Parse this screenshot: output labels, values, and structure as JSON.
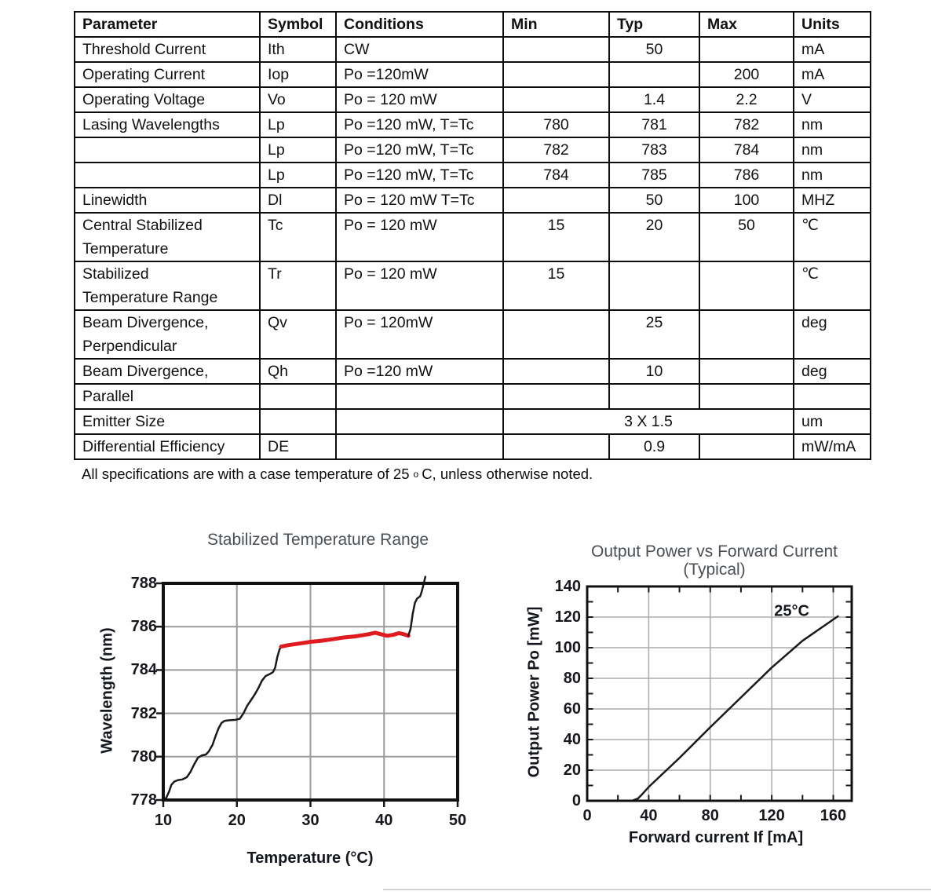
{
  "table": {
    "headers": [
      "Parameter",
      "Symbol",
      "Conditions",
      "Min",
      "Typ",
      "Max",
      "Units"
    ],
    "rows": [
      {
        "cells": [
          "Threshold Current",
          "Ith",
          "CW",
          "",
          "50",
          "",
          "mA"
        ]
      },
      {
        "cells": [
          "Operating Current",
          "Iop",
          "Po =120mW",
          "",
          "",
          "200",
          "mA"
        ]
      },
      {
        "cells": [
          "Operating Voltage",
          "Vo",
          "Po = 120 mW",
          "",
          "1.4",
          "2.2",
          "V"
        ]
      },
      {
        "cells": [
          "Lasing Wavelengths",
          "Lp",
          "Po =120 mW, T=Tc",
          "780",
          "781",
          "782",
          "nm"
        ]
      },
      {
        "cells": [
          "",
          "Lp",
          "Po =120 mW, T=Tc",
          "782",
          "783",
          "784",
          "nm"
        ]
      },
      {
        "cells": [
          "",
          "Lp",
          "Po =120 mW, T=Tc",
          "784",
          "785",
          "786",
          "nm"
        ]
      },
      {
        "cells": [
          "Linewidth",
          "Dl",
          "Po = 120 mW T=Tc",
          "",
          "50",
          "100",
          "MHZ"
        ]
      },
      {
        "cells": [
          "Central Stabilized\nTemperature",
          "Tc",
          "Po = 120 mW",
          "15",
          "20",
          "50",
          "℃"
        ]
      },
      {
        "cells": [
          "Stabilized\nTemperature Range",
          "Tr",
          "Po = 120 mW",
          "15",
          "",
          "",
          "℃"
        ]
      },
      {
        "cells": [
          "Beam Divergence,\nPerpendicular",
          "Qv",
          "Po = 120mW",
          "",
          "25",
          "",
          "deg"
        ]
      },
      {
        "cells": [
          "Beam Divergence,",
          "Qh",
          "Po =120 mW",
          "",
          "10",
          "",
          "deg"
        ]
      },
      {
        "cells": [
          "Parallel",
          "",
          "",
          "",
          "",
          "",
          ""
        ]
      },
      {
        "cells": [
          "Emitter Size",
          "",
          "",
          {
            "text": "3 X 1.5",
            "span": 3
          },
          "um"
        ]
      },
      {
        "cells": [
          "Differential Efficiency",
          "DE",
          "",
          "",
          "0.9",
          "",
          "mW/mA"
        ]
      }
    ]
  },
  "footnote": {
    "pre": "All specifications are with a case temperature of 25",
    "deg": "o",
    "post": "C, unless otherwise noted."
  },
  "chart_data": [
    {
      "type": "line",
      "title": "Stabilized Temperature Range",
      "xlabel": "Temperature (°C)",
      "ylabel": "Wavelength (nm)",
      "xlim": [
        10,
        50
      ],
      "ylim": [
        778,
        788
      ],
      "xticks": [
        10,
        20,
        30,
        40,
        50
      ],
      "yticks": [
        778,
        780,
        782,
        784,
        786,
        788
      ],
      "grid": true,
      "legend": "none",
      "series": [
        {
          "name": "unstabilized-low",
          "color": "#1a1a1a",
          "width": 2.5,
          "points": [
            [
              10,
              778.0
            ],
            [
              10.4,
              778.1
            ],
            [
              10.8,
              778.4
            ],
            [
              11.1,
              778.7
            ],
            [
              11.5,
              778.85
            ],
            [
              12,
              778.92
            ],
            [
              12.6,
              778.95
            ],
            [
              13.2,
              779.05
            ],
            [
              13.7,
              779.3
            ],
            [
              14.2,
              779.65
            ],
            [
              14.7,
              779.95
            ],
            [
              15.2,
              780.05
            ],
            [
              15.8,
              780.1
            ],
            [
              16.2,
              780.25
            ],
            [
              16.7,
              780.55
            ],
            [
              17.1,
              780.95
            ],
            [
              17.5,
              781.3
            ],
            [
              17.9,
              781.55
            ],
            [
              18.3,
              781.65
            ],
            [
              19,
              781.68
            ],
            [
              19.8,
              781.7
            ],
            [
              20.4,
              781.75
            ],
            [
              20.9,
              782.0
            ],
            [
              21.4,
              782.35
            ],
            [
              21.9,
              782.6
            ],
            [
              22.4,
              782.85
            ],
            [
              22.9,
              783.15
            ],
            [
              23.4,
              783.5
            ],
            [
              23.9,
              783.72
            ],
            [
              24.4,
              783.8
            ],
            [
              24.9,
              783.9
            ],
            [
              25.2,
              784.1
            ],
            [
              25.5,
              784.6
            ],
            [
              25.8,
              784.95
            ],
            [
              26,
              785.08
            ]
          ]
        },
        {
          "name": "stabilized-range",
          "color": "#e01b1f",
          "width": 5,
          "points": [
            [
              26,
              785.08
            ],
            [
              27,
              785.15
            ],
            [
              28.5,
              785.22
            ],
            [
              30,
              785.3
            ],
            [
              31.5,
              785.35
            ],
            [
              33,
              785.42
            ],
            [
              34.5,
              785.5
            ],
            [
              36,
              785.55
            ],
            [
              37,
              785.6
            ],
            [
              38,
              785.66
            ],
            [
              38.8,
              785.72
            ],
            [
              39.6,
              785.65
            ],
            [
              40.4,
              785.58
            ],
            [
              41.2,
              785.62
            ],
            [
              42,
              785.7
            ],
            [
              42.6,
              785.66
            ],
            [
              43.3,
              785.58
            ]
          ]
        },
        {
          "name": "unstabilized-high",
          "color": "#1a1a1a",
          "width": 2.5,
          "points": [
            [
              43.3,
              785.58
            ],
            [
              43.6,
              785.9
            ],
            [
              43.9,
              786.6
            ],
            [
              44.2,
              787.1
            ],
            [
              44.5,
              787.3
            ],
            [
              44.9,
              787.4
            ],
            [
              45.1,
              787.6
            ],
            [
              45.4,
              788.0
            ],
            [
              45.6,
              788.3
            ]
          ]
        }
      ]
    },
    {
      "type": "line",
      "title": "Output Power vs Forward Current",
      "subtitle": "(Typical)",
      "xlabel": "Forward current If [mA]",
      "ylabel": "Output Power Po [mW]",
      "xlim": [
        0,
        172
      ],
      "ylim": [
        0,
        140
      ],
      "xticks": [
        0,
        40,
        80,
        120,
        160
      ],
      "yticks": [
        0,
        20,
        40,
        60,
        80,
        100,
        120,
        140
      ],
      "x_minor_step": 20,
      "y_minor_step": 10,
      "grid": true,
      "legend": "none",
      "annotation": {
        "label": "25°C",
        "x": 133,
        "y": 123.5
      },
      "series": [
        {
          "name": "li-curve-25c",
          "color": "#1a1a1a",
          "width": 2.5,
          "points": [
            [
              29,
              0
            ],
            [
              33,
              1.5
            ],
            [
              36,
              4.5
            ],
            [
              40,
              9
            ],
            [
              60,
              28
            ],
            [
              80,
              48
            ],
            [
              100,
              67.5
            ],
            [
              120,
              87
            ],
            [
              140,
              104.5
            ],
            [
              163,
              120.5
            ]
          ]
        }
      ]
    }
  ]
}
